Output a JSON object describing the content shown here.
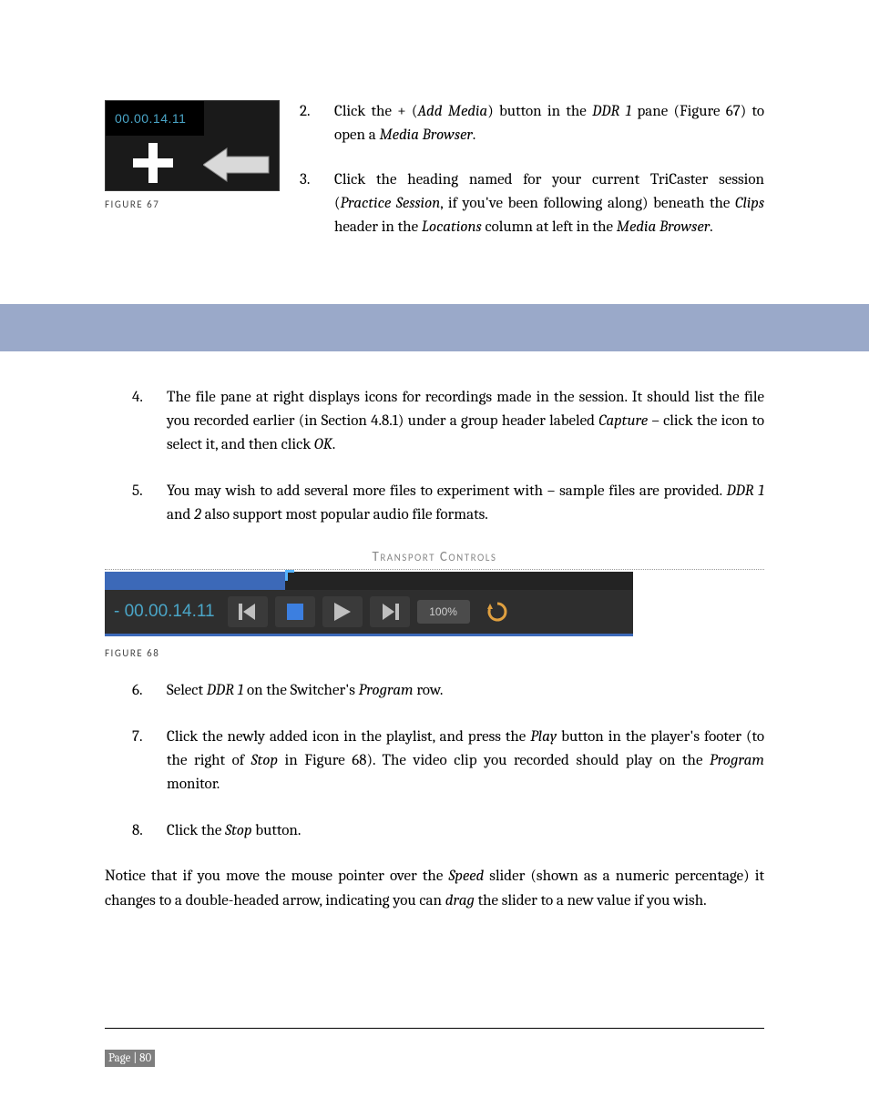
{
  "figure67": {
    "timecode": "00.00.14.11",
    "caption": "FIGURE 67",
    "colors": {
      "panel": "#1a1a1a",
      "head": "#000000",
      "timecode": "#4aa5c7",
      "plus": "#ffffff"
    }
  },
  "steps_top": [
    {
      "num": "2.",
      "html": "Click the + (<em>Add Media</em>) button in the <em>DDR 1</em> pane (Figure 67) to open a <em>Media Browser</em>."
    },
    {
      "num": "3.",
      "html": "Click the heading named for your current TriCaster session (<em>Practice Session</em>, if you've been following along) beneath the <em>Clips</em> header in the <em>Locations</em> column at left in the <em>Media Browser</em>."
    }
  ],
  "bluebar_color": "#9aa9c9",
  "steps_mid": [
    {
      "num": "4.",
      "html": "The file pane at right displays icons for recordings made in the session.  It should list the file you recorded earlier (in Section 4.8.1) under a group header labeled <em>Capture</em> – click the icon to select it, and then click <em>OK</em>."
    },
    {
      "num": "5.",
      "html": "You may wish to add several more files to experiment with – sample files are provided.  <em>DDR 1</em> and <em>2</em> also support most popular audio file formats."
    }
  ],
  "transport": {
    "heading": "Transport Controls",
    "timecode": "- 00.00.14.11",
    "speed": "100%",
    "colors": {
      "strip_bg": "#232323",
      "segment": "#3c69b8",
      "marker": "#55b4ff",
      "row_bg": "#2e2e2e",
      "btn_bg": "#3a3a3a",
      "timecode": "#4aa5c7",
      "speed_bg": "#4b4b4b",
      "speed_text": "#cfcfcf",
      "underline": "#3c69b8",
      "loop_icon": "#e0a040"
    },
    "caption": "FIGURE 68"
  },
  "steps_bottom": [
    {
      "num": "6.",
      "html": "Select <em>DDR 1</em> on the Switcher's <em>Program</em> row."
    },
    {
      "num": "7.",
      "html": "Click the newly added icon in the playlist, and press the <em>Play</em> button in the player's footer (to the right of <em>Stop</em> in Figure 68). The video clip you recorded should play on the <em>Program</em> monitor."
    },
    {
      "num": "8.",
      "html": "Click the <em>Stop</em> button."
    }
  ],
  "closing_para": "Notice that if you move the mouse pointer over the <em>Speed</em> slider (shown as a numeric percentage) it changes to a double-headed arrow, indicating you can <em>drag</em> the slider to a new value if you wish.",
  "page_footer": "Page | 80"
}
